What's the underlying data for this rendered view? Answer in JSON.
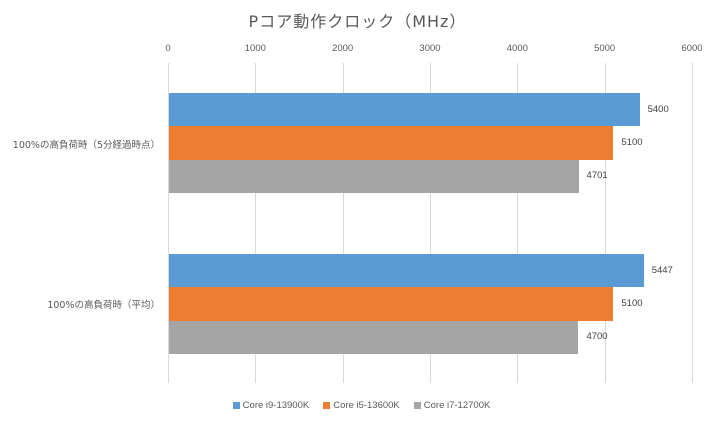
{
  "chart_data": {
    "type": "bar",
    "orientation": "horizontal",
    "title": "Pコア動作クロック（MHz）",
    "xlabel": "",
    "ylabel": "",
    "xlim": [
      0,
      6000
    ],
    "x_ticks": [
      "0",
      "1000",
      "2000",
      "3000",
      "4000",
      "5000",
      "6000"
    ],
    "x_axis_position": "top",
    "grid": true,
    "legend_position": "bottom",
    "categories": [
      "100%の高負荷時（5分経過時点）",
      "100%の高負荷時（平均）"
    ],
    "series": [
      {
        "name": "Core i9-13900K",
        "color": "#5B9BD5",
        "values": [
          5400,
          5447
        ],
        "labels": [
          "5400",
          "5447"
        ]
      },
      {
        "name": "Core i5-13600K",
        "color": "#ED7D31",
        "values": [
          5100,
          5100
        ],
        "labels": [
          "5100",
          "5100"
        ]
      },
      {
        "name": "Core i7-12700K",
        "color": "#A5A5A5",
        "values": [
          4701,
          4700
        ],
        "labels": [
          "4701",
          "4700"
        ]
      }
    ]
  }
}
